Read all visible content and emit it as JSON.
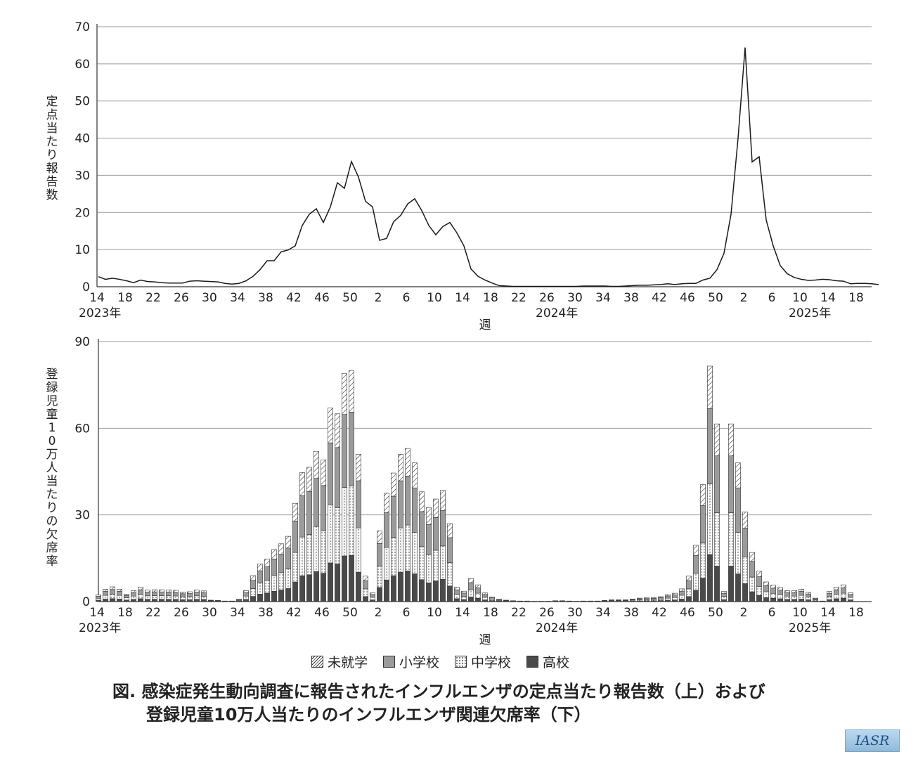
{
  "chart_data": [
    {
      "type": "line",
      "ylabel": "定点当たり報告数",
      "xlabel": "週",
      "ylim": [
        0,
        70
      ],
      "yticks": [
        0,
        10,
        20,
        30,
        40,
        50,
        60,
        70
      ],
      "grid": true,
      "x_tick_labels": [
        "14",
        "18",
        "22",
        "26",
        "30",
        "34",
        "38",
        "42",
        "46",
        "50",
        "2",
        "6",
        "10",
        "14",
        "18",
        "22",
        "26",
        "30",
        "34",
        "38",
        "42",
        "46",
        "50",
        "2",
        "6",
        "10",
        "14",
        "18"
      ],
      "year_labels": [
        {
          "label": "2023年",
          "week_index": 0
        },
        {
          "label": "2024年",
          "week_index": 65
        },
        {
          "label": "2025年",
          "week_index": 101
        }
      ],
      "series": [
        {
          "values": [
            2.7,
            2.0,
            2.3,
            2.0,
            1.6,
            1.1,
            1.8,
            1.4,
            1.3,
            1.1,
            1.0,
            1.0,
            1.0,
            1.5,
            1.6,
            1.5,
            1.4,
            1.3,
            0.9,
            0.7,
            0.9,
            1.6,
            2.8,
            4.6,
            7.0,
            7.0,
            9.4,
            9.9,
            11.0,
            16.5,
            19.5,
            21.0,
            17.3,
            21.5,
            28.0,
            26.5,
            33.7,
            29.5,
            23.0,
            21.5,
            12.5,
            13.0,
            17.5,
            19.2,
            22.3,
            23.7,
            20.5,
            16.5,
            14.0,
            16.2,
            17.3,
            14.5,
            11.0,
            4.8,
            2.8,
            1.8,
            1.0,
            0.3,
            0.2,
            0.1,
            0.1,
            0.1,
            0.1,
            0.1,
            0.1,
            0.1,
            0.1,
            0.1,
            0.1,
            0.2,
            0.2,
            0.2,
            0.2,
            0.1,
            0.1,
            0.2,
            0.3,
            0.4,
            0.4,
            0.5,
            0.6,
            0.8,
            0.6,
            0.8,
            0.9,
            0.9,
            1.8,
            2.3,
            4.6,
            9.0,
            19.5,
            40.0,
            64.4,
            33.6,
            35.0,
            18.0,
            11.0,
            5.7,
            3.5,
            2.5,
            2.0,
            1.7,
            1.8,
            2.0,
            1.9,
            1.6,
            1.5,
            0.8,
            0.9,
            0.9,
            0.8,
            0.6
          ]
        }
      ]
    },
    {
      "type": "bar",
      "stacked": true,
      "ylabel": "登録児童10万人当たりの欠席率",
      "xlabel": "週",
      "ylim": [
        0,
        90
      ],
      "yticks": [
        0,
        30,
        60,
        90
      ],
      "grid": true,
      "x_tick_labels": [
        "14",
        "18",
        "22",
        "26",
        "30",
        "34",
        "38",
        "42",
        "46",
        "50",
        "2",
        "6",
        "10",
        "14",
        "18",
        "22",
        "26",
        "30",
        "34",
        "38",
        "42",
        "46",
        "50",
        "2",
        "6",
        "10",
        "14",
        "18"
      ],
      "year_labels": [
        {
          "label": "2023年",
          "week_index": 0
        },
        {
          "label": "2024年",
          "week_index": 65
        },
        {
          "label": "2025年",
          "week_index": 101
        }
      ],
      "legend": [
        "未就学",
        "小学校",
        "中学校",
        "高校"
      ],
      "week_totals": [
        2.3,
        4.3,
        5.1,
        4.3,
        2.6,
        3.8,
        5.0,
        4.0,
        4.1,
        4.1,
        4.0,
        3.9,
        3.3,
        3.4,
        4.0,
        3.7,
        0.5,
        0.4,
        0.2,
        0.2,
        0.8,
        3.8,
        9.0,
        13.0,
        14.7,
        18.0,
        20.0,
        22.6,
        34.0,
        44.7,
        46.5,
        52.0,
        49.0,
        67.0,
        65.0,
        79.0,
        80.0,
        51.0,
        8.8,
        3.0,
        24.5,
        37.5,
        44.5,
        51.0,
        53.0,
        48.0,
        38.0,
        32.5,
        35.5,
        38.5,
        27.0,
        5.0,
        3.6,
        8.0,
        5.8,
        3.0,
        1.6,
        0.8,
        0.5,
        0.3,
        0.2,
        0.2,
        0.1,
        0.1,
        0.1,
        0.3,
        0.3,
        0.2,
        0.1,
        0.2,
        0.2,
        0.2,
        0.4,
        0.6,
        0.6,
        0.6,
        0.9,
        1.2,
        1.3,
        1.4,
        1.7,
        2.4,
        2.9,
        4.4,
        8.8,
        19.5,
        40.5,
        81.5,
        61.5,
        3.5,
        61.5,
        48.0,
        31.0,
        17.0,
        10.5,
        6.8,
        5.7,
        4.9,
        3.8,
        3.8,
        4.3,
        3.2,
        1.2,
        0.2,
        3.5,
        5.0,
        5.8,
        3.0
      ]
    }
  ],
  "legend": {
    "preschool": "未就学",
    "elementary": "小学校",
    "junior_high": "中学校",
    "high_school": "高校"
  },
  "caption": {
    "line1": "図. 感染症発生動向調査に報告されたインフルエンザの定点当たり報告数（上）および",
    "line2": "登録児童10万人当たりのインフルエンザ関連欠席率（下）"
  },
  "logo": {
    "text": "IASR"
  },
  "colors": {
    "line": "#1a1a1a",
    "grid": "#9a9a9a",
    "preschool": "#ffffff",
    "elementary": "#9b9b9b",
    "junior_high": "#f2f2f2",
    "high_school": "#4a4a4a"
  }
}
